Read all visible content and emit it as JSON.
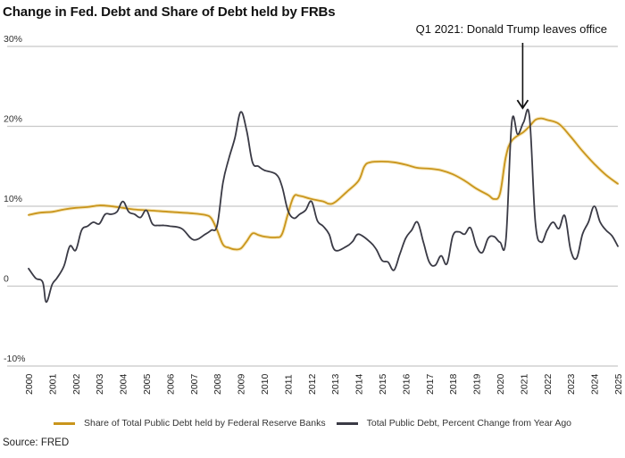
{
  "chart_data": {
    "type": "line",
    "title": "Change in Fed. Debt and Share of Debt held by FRBs",
    "xlabel": "",
    "ylabel": "",
    "xlim": [
      2000,
      2025
    ],
    "ylim": [
      -10,
      30
    ],
    "grid": true,
    "y_ticks": [
      {
        "value": 30,
        "label": "30%"
      },
      {
        "value": 20,
        "label": "20%"
      },
      {
        "value": 10,
        "label": "10%"
      },
      {
        "value": 0,
        "label": "0"
      },
      {
        "value": -10,
        "label": "-10%"
      }
    ],
    "x_ticks": [
      "2000",
      "2001",
      "2002",
      "2003",
      "2004",
      "2005",
      "2006",
      "2007",
      "2008",
      "2009",
      "2010",
      "2011",
      "2012",
      "2013",
      "2014",
      "2015",
      "2016",
      "2017",
      "2018",
      "2019",
      "2020",
      "2021",
      "2022",
      "2023",
      "2024",
      "2025"
    ],
    "legend_position": "bottom",
    "series": [
      {
        "name": "Share of Total Public Debt held by Federal Reserve Banks",
        "color": "#c9951c",
        "x": [
          2000.0,
          2000.5,
          2001.0,
          2001.5,
          2002.0,
          2002.5,
          2003.0,
          2003.5,
          2004.0,
          2004.5,
          2005.0,
          2005.5,
          2006.0,
          2006.5,
          2007.0,
          2007.5,
          2007.75,
          2008.0,
          2008.25,
          2008.5,
          2008.75,
          2009.0,
          2009.25,
          2009.5,
          2009.75,
          2010.0,
          2010.5,
          2010.75,
          2011.0,
          2011.25,
          2011.5,
          2012.0,
          2012.5,
          2012.75,
          2013.0,
          2013.5,
          2014.0,
          2014.25,
          2014.5,
          2015.0,
          2015.5,
          2016.0,
          2016.5,
          2017.0,
          2017.5,
          2018.0,
          2018.5,
          2019.0,
          2019.5,
          2019.75,
          2020.0,
          2020.25,
          2020.5,
          2021.0,
          2021.25,
          2021.5,
          2021.75,
          2022.0,
          2022.5,
          2023.0,
          2023.5,
          2024.0,
          2024.5,
          2025.0
        ],
        "values": [
          8.9,
          9.2,
          9.3,
          9.6,
          9.8,
          9.9,
          10.1,
          10.0,
          9.8,
          9.6,
          9.5,
          9.4,
          9.3,
          9.2,
          9.1,
          8.9,
          8.5,
          7.0,
          5.2,
          4.8,
          4.6,
          4.7,
          5.6,
          6.6,
          6.4,
          6.2,
          6.1,
          6.5,
          9.0,
          11.2,
          11.3,
          10.9,
          10.6,
          10.3,
          10.5,
          11.8,
          13.2,
          15.0,
          15.5,
          15.6,
          15.5,
          15.2,
          14.8,
          14.7,
          14.5,
          14.0,
          13.2,
          12.2,
          11.4,
          10.9,
          11.6,
          16.2,
          18.2,
          19.3,
          20.0,
          20.8,
          21.0,
          20.8,
          20.3,
          18.7,
          16.9,
          15.3,
          13.9,
          12.8
        ]
      },
      {
        "name": "Total Public Debt, Percent Change from Year Ago",
        "color": "#3a3a45",
        "x": [
          2000.0,
          2000.3,
          2000.6,
          2000.75,
          2001.0,
          2001.2,
          2001.5,
          2001.75,
          2002.0,
          2002.25,
          2002.5,
          2002.75,
          2003.0,
          2003.25,
          2003.5,
          2003.75,
          2004.0,
          2004.25,
          2004.5,
          2004.75,
          2005.0,
          2005.25,
          2005.5,
          2005.75,
          2006.0,
          2006.5,
          2007.0,
          2007.5,
          2007.75,
          2008.0,
          2008.25,
          2008.5,
          2008.75,
          2009.0,
          2009.25,
          2009.5,
          2009.75,
          2010.0,
          2010.5,
          2010.75,
          2011.0,
          2011.25,
          2011.5,
          2011.75,
          2012.0,
          2012.25,
          2012.5,
          2012.75,
          2013.0,
          2013.5,
          2013.75,
          2014.0,
          2014.5,
          2014.75,
          2015.0,
          2015.25,
          2015.5,
          2015.75,
          2016.0,
          2016.25,
          2016.5,
          2016.75,
          2017.0,
          2017.25,
          2017.5,
          2017.75,
          2018.0,
          2018.25,
          2018.5,
          2018.75,
          2019.0,
          2019.25,
          2019.5,
          2019.75,
          2020.0,
          2020.25,
          2020.5,
          2020.75,
          2021.0,
          2021.25,
          2021.5,
          2021.75,
          2022.0,
          2022.25,
          2022.5,
          2022.75,
          2023.0,
          2023.25,
          2023.5,
          2023.75,
          2024.0,
          2024.25,
          2024.5,
          2024.75,
          2025.0
        ],
        "values": [
          2.2,
          1.0,
          0.5,
          -2.0,
          0.2,
          1.0,
          2.5,
          5.0,
          4.5,
          7.0,
          7.5,
          8.0,
          7.8,
          9.0,
          9.0,
          9.3,
          10.6,
          9.3,
          9.0,
          8.6,
          9.5,
          7.8,
          7.6,
          7.6,
          7.5,
          7.2,
          5.8,
          6.5,
          7.0,
          7.6,
          13.0,
          16.0,
          18.5,
          21.8,
          19.5,
          15.5,
          15.0,
          14.5,
          14.0,
          12.5,
          9.5,
          8.5,
          9.0,
          9.5,
          10.6,
          8.2,
          7.5,
          6.5,
          4.5,
          5.0,
          5.6,
          6.5,
          5.5,
          4.6,
          3.2,
          3.0,
          2.0,
          4.0,
          6.0,
          7.0,
          8.0,
          5.5,
          3.0,
          2.6,
          3.8,
          2.8,
          6.3,
          6.8,
          6.5,
          7.3,
          5.0,
          4.2,
          6.0,
          6.2,
          5.5,
          5.8,
          20.5,
          19.0,
          20.5,
          21.2,
          8.0,
          5.5,
          7.0,
          8.0,
          7.2,
          8.8,
          4.5,
          3.5,
          6.5,
          8.0,
          10.0,
          8.0,
          7.0,
          6.3,
          5.0
        ]
      }
    ],
    "annotations": [
      {
        "text": "Q1 2021: Donald Trump leaves office",
        "x": 2021.0,
        "arrow_to_value": 21.5
      }
    ]
  },
  "source": "Source: FRED"
}
